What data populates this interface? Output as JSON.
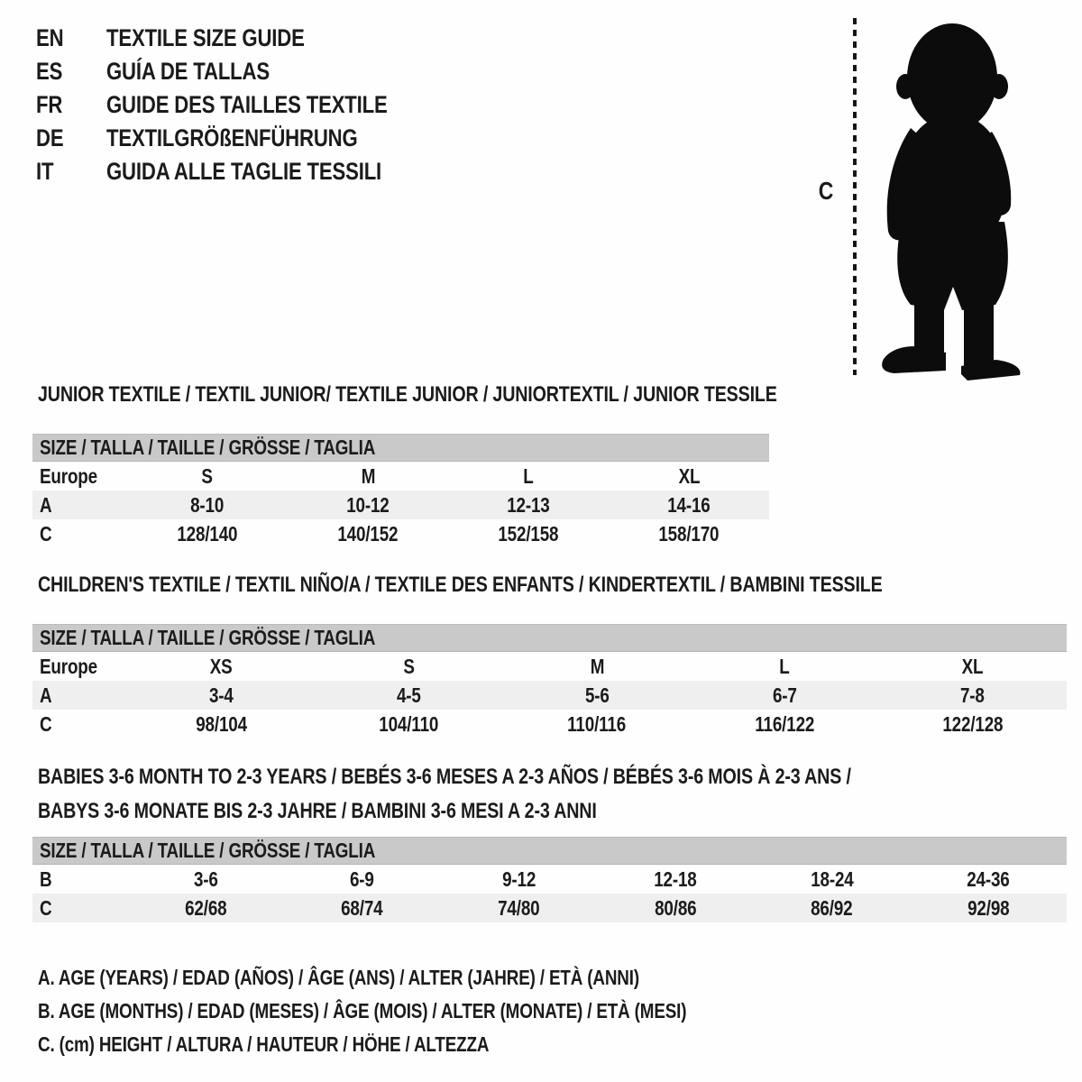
{
  "page": {
    "background": "#ffffff",
    "text_color": "#1b1b1b",
    "table_header_bg": "#c9c9c9",
    "stripe_bg": "#efefef",
    "silhouette_color": "#0c0c0c"
  },
  "header": {
    "languages": [
      {
        "code": "EN",
        "title": "TEXTILE SIZE GUIDE"
      },
      {
        "code": "ES",
        "title": "GUÍA DE TALLAS"
      },
      {
        "code": "FR",
        "title": "GUIDE DES TAILLES TEXTILE"
      },
      {
        "code": "DE",
        "title": "TEXTILGRÖßENFÜHRUNG"
      },
      {
        "code": "IT",
        "title": "GUIDA ALLE TAGLIE TESSILI"
      }
    ]
  },
  "figure": {
    "icon": "toddler-silhouette",
    "measure_label": "C"
  },
  "tables": [
    {
      "id": "junior",
      "title_lines": [
        "JUNIOR TEXTILE / TEXTIL JUNIOR/ TEXTILE JUNIOR / JUNIORTEXTIL / JUNIOR TESSILE"
      ],
      "header": "SIZE / TALLA / TAILLE / GRÖSSE / TAGLIA",
      "rows": [
        {
          "label": "Europe",
          "striped": false,
          "cells": [
            "S",
            "M",
            "L",
            "XL"
          ]
        },
        {
          "label": "A",
          "striped": true,
          "cells": [
            "8-10",
            "10-12",
            "12-13",
            "14-16"
          ]
        },
        {
          "label": "C",
          "striped": false,
          "cells": [
            "128/140",
            "140/152",
            "152/158",
            "158/170"
          ]
        }
      ]
    },
    {
      "id": "children",
      "title_lines": [
        "CHILDREN'S TEXTILE / TEXTIL NIÑO/A / TEXTILE DES ENFANTS / KINDERTEXTIL / BAMBINI TESSILE"
      ],
      "header": "SIZE / TALLA / TAILLE / GRÖSSE / TAGLIA",
      "rows": [
        {
          "label": "Europe",
          "striped": false,
          "cells": [
            "XS",
            "S",
            "M",
            "L",
            "XL"
          ]
        },
        {
          "label": "A",
          "striped": true,
          "cells": [
            "3-4",
            "4-5",
            "5-6",
            "6-7",
            "7-8"
          ]
        },
        {
          "label": "C",
          "striped": false,
          "cells": [
            "98/104",
            "104/110",
            "110/116",
            "116/122",
            "122/128"
          ]
        }
      ]
    },
    {
      "id": "babies",
      "title_lines": [
        "BABIES 3-6 MONTH TO 2-3 YEARS / BEBÉS 3-6 MESES A 2-3 AÑOS / BÉBÉS 3-6 MOIS À 2-3 ANS /",
        "BABYS 3-6 MONATE BIS 2-3 JAHRE / BAMBINI 3-6 MESI A 2-3 ANNI"
      ],
      "header": "SIZE / TALLA / TAILLE / GRÖSSE / TAGLIA",
      "rows": [
        {
          "label": "B",
          "striped": false,
          "cells": [
            "3-6",
            "6-9",
            "9-12",
            "12-18",
            "18-24",
            "24-36"
          ]
        },
        {
          "label": "C",
          "striped": true,
          "cells": [
            "62/68",
            "68/74",
            "74/80",
            "80/86",
            "86/92",
            "92/98"
          ]
        }
      ]
    }
  ],
  "footnotes": [
    "A. AGE (YEARS) / EDAD (AÑOS) / ÂGE (ANS) / ALTER (JAHRE) / ETÀ (ANNI)",
    "B. AGE (MONTHS) / EDAD (MESES) / ÂGE (MOIS) / ALTER (MONATE) / ETÀ (MESI)",
    "C. (cm) HEIGHT / ALTURA / HAUTEUR / HÖHE / ALTEZZA"
  ]
}
